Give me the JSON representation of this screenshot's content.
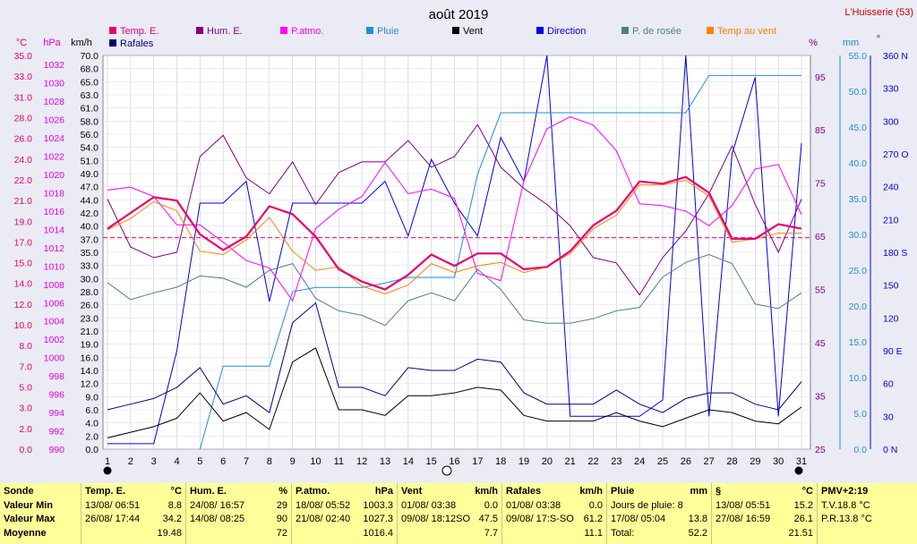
{
  "header": {
    "title": "août 2019",
    "station": "L'Huisserie (53)"
  },
  "legend": [
    {
      "label": "Temp. E.",
      "color": "#e6006e"
    },
    {
      "label": "Hum. E.",
      "color": "#800080"
    },
    {
      "label": "P.atmo.",
      "color": "#ff00ff"
    },
    {
      "label": "Pluie",
      "color": "#1e90d2"
    },
    {
      "label": "Vent",
      "color": "#000000"
    },
    {
      "label": "Direction",
      "color": "#0000e6"
    },
    {
      "label": "P. de rosée",
      "color": "#508080"
    },
    {
      "label": "Temp au vent",
      "color": "#ff8000"
    },
    {
      "label": "Rafales",
      "color": "#000080"
    }
  ],
  "axes": {
    "temp_unit": "°C",
    "pressure_unit": "hPa",
    "wind_unit": "km/h",
    "hum_unit": "%",
    "rain_unit": "mm",
    "dir_unit": "°",
    "temp_ticks": [
      "35.0",
      "33.0",
      "31.0",
      "28.0",
      "26.0",
      "24.0",
      "22.0",
      "21.0",
      "19.0",
      "17.0",
      "15.0",
      "14.0",
      "12.0",
      "10.0",
      "8.0",
      "7.0",
      "5.0",
      "3.0",
      "2.0",
      "0.0"
    ],
    "pressure_ticks": [
      "1032",
      "1030",
      "1028",
      "1026",
      "1024",
      "1022",
      "1020",
      "1018",
      "1016",
      "1014",
      "1012",
      "1010",
      "1008",
      "1006",
      "1004",
      "1002",
      "1000",
      "998",
      "996",
      "994",
      "992",
      "990"
    ],
    "wind_ticks": [
      "70.0",
      "68.0",
      "65.0",
      "63.0",
      "61.0",
      "58.0",
      "56.0",
      "54.0",
      "51.0",
      "49.0",
      "47.0",
      "44.0",
      "42.0",
      "40.0",
      "37.0",
      "35.0",
      "33.0",
      "30.0",
      "28.0",
      "26.0",
      "23.0",
      "21.0",
      "19.0",
      "16.0",
      "14.0",
      "12.0",
      "9.0",
      "6.0",
      "4.0",
      "2.0",
      "0.0"
    ],
    "hum_ticks": [
      "95",
      "85",
      "75",
      "65",
      "55",
      "45",
      "35",
      "25"
    ],
    "rain_ticks": [
      "55.0",
      "50.0",
      "45.0",
      "40.0",
      "35.0",
      "30.0",
      "25.0",
      "20.0",
      "15.0",
      "10.0",
      "5.0",
      "0.0"
    ],
    "dir_ticks": [
      "360 N",
      "330",
      "300",
      "270 O",
      "240",
      "210",
      "180 S",
      "150",
      "120",
      "90 E",
      "60",
      "30",
      "0 N"
    ],
    "days": [
      "1",
      "2",
      "3",
      "4",
      "5",
      "6",
      "7",
      "8",
      "9",
      "10",
      "11",
      "12",
      "13",
      "14",
      "15",
      "16",
      "17",
      "18",
      "19",
      "20",
      "21",
      "22",
      "23",
      "24",
      "25",
      "26",
      "27",
      "28",
      "29",
      "30",
      "31"
    ]
  },
  "chart_data": {
    "type": "line",
    "title": "août 2019",
    "x": [
      1,
      2,
      3,
      4,
      5,
      6,
      7,
      8,
      9,
      10,
      11,
      12,
      13,
      14,
      15,
      16,
      17,
      18,
      19,
      20,
      21,
      22,
      23,
      24,
      25,
      26,
      27,
      28,
      29,
      30,
      31
    ],
    "temp_range": [
      0,
      35
    ],
    "pressure_range": [
      990,
      1033
    ],
    "wind_range": [
      0,
      70
    ],
    "humidity_range": [
      25,
      99
    ],
    "rain_range": [
      0,
      55
    ],
    "direction_range": [
      0,
      360
    ],
    "reference_line_temp": 18.8,
    "series": [
      {
        "name": "Temp. E.",
        "axis": "temp",
        "color": "#e6006e",
        "values": [
          19.6,
          21.0,
          22.4,
          22.1,
          19.1,
          17.7,
          18.9,
          21.6,
          20.9,
          18.9,
          16.0,
          14.9,
          14.2,
          15.5,
          17.3,
          16.3,
          17.4,
          17.4,
          16.0,
          16.2,
          17.6,
          19.9,
          21.2,
          23.8,
          23.6,
          24.2,
          22.8,
          18.7,
          18.7,
          20.0,
          19.6
        ]
      },
      {
        "name": "Hum. E.",
        "axis": "humidity",
        "color": "#800080",
        "values": [
          72,
          63,
          61,
          62,
          80,
          84,
          76,
          73,
          79,
          71,
          77,
          79,
          79,
          83,
          78,
          80,
          86,
          78,
          74,
          71,
          67,
          61,
          60,
          54,
          61,
          66,
          73,
          82,
          71,
          62,
          72
        ]
      },
      {
        "name": "P.atmo.",
        "axis": "pressure",
        "color": "#ff00ff",
        "values": [
          1018.3,
          1018.6,
          1017.6,
          1014.5,
          1014.5,
          1012.6,
          1010.6,
          1009.8,
          1006.2,
          1014.1,
          1016.2,
          1017.6,
          1021.3,
          1017.9,
          1018.4,
          1017.4,
          1009.2,
          1008.4,
          1019.3,
          1025.0,
          1026.3,
          1025.4,
          1022.6,
          1016.8,
          1016.6,
          1016.0,
          1014.4,
          1016.6,
          1020.6,
          1021.1,
          1015.6
        ]
      },
      {
        "name": "Pluie",
        "axis": "rain",
        "color": "#1e90d2",
        "values": [
          null,
          null,
          null,
          null,
          0.0,
          11.6,
          11.6,
          11.6,
          22.0,
          22.6,
          22.6,
          22.6,
          23.2,
          24.0,
          24.0,
          24.0,
          38.4,
          47.0,
          47.0,
          47.0,
          47.0,
          47.0,
          47.0,
          47.0,
          47.0,
          47.0,
          52.2,
          52.2,
          52.2,
          52.2,
          52.2
        ]
      },
      {
        "name": "Vent",
        "axis": "wind",
        "color": "#000000",
        "values": [
          2.0,
          3.0,
          4.0,
          5.5,
          10.0,
          5.0,
          6.5,
          3.5,
          15.5,
          18.0,
          7.0,
          7.0,
          6.0,
          9.5,
          9.5,
          10.0,
          11.0,
          10.5,
          6.0,
          5.0,
          5.0,
          5.0,
          6.5,
          5.0,
          4.0,
          5.5,
          7.0,
          6.5,
          5.0,
          4.5,
          7.5
        ]
      },
      {
        "name": "Direction",
        "axis": "direction",
        "color": "#0000e6",
        "values": [
          5,
          5,
          5,
          90,
          225,
          225,
          245,
          135,
          225,
          225,
          225,
          225,
          245,
          195,
          265,
          225,
          195,
          285,
          245,
          360,
          30,
          30,
          30,
          30,
          45,
          360,
          30,
          270,
          340,
          30,
          280
        ]
      },
      {
        "name": "P. de rosée",
        "axis": "temp",
        "color": "#508080",
        "values": [
          14.8,
          13.3,
          13.9,
          14.4,
          15.4,
          15.2,
          14.4,
          15.9,
          16.5,
          13.4,
          12.3,
          11.9,
          11.0,
          13.2,
          13.9,
          13.2,
          16.0,
          14.2,
          11.5,
          11.2,
          11.2,
          11.6,
          12.3,
          12.6,
          15.3,
          16.6,
          17.3,
          16.5,
          12.9,
          12.5,
          13.9
        ]
      },
      {
        "name": "Temp au vent",
        "axis": "temp",
        "color": "#ff8000",
        "values": [
          19.5,
          20.5,
          22.0,
          21.2,
          17.6,
          17.3,
          18.6,
          20.6,
          17.6,
          15.9,
          16.2,
          14.5,
          13.8,
          14.6,
          16.5,
          15.7,
          16.3,
          16.6,
          15.7,
          16.2,
          17.4,
          19.6,
          20.8,
          23.5,
          23.5,
          23.9,
          22.5,
          18.4,
          18.7,
          19.2,
          19.2
        ]
      },
      {
        "name": "Rafales",
        "axis": "wind",
        "color": "#000080",
        "values": [
          7.0,
          8.0,
          9.0,
          11.0,
          14.5,
          8.0,
          9.5,
          6.5,
          22.5,
          26.0,
          11.0,
          11.0,
          9.5,
          14.5,
          14.0,
          14.0,
          16.0,
          15.5,
          10.0,
          8.0,
          8.0,
          8.0,
          10.5,
          8.0,
          6.5,
          9.0,
          10.0,
          10.0,
          8.0,
          7.0,
          12.0
        ]
      }
    ]
  },
  "table": {
    "row_labels": [
      "Sonde",
      "Valeur Min",
      "Valeur Max",
      "Moyenne"
    ],
    "temp": {
      "title": "Temp. E.",
      "unit": "°C",
      "min_date": "13/08/ 06:51",
      "min": "8.8",
      "max_date": "26/08/ 17:44",
      "max": "34.2",
      "avg": "19.48"
    },
    "hum": {
      "title": "Hum. E.",
      "unit": "%",
      "min_date": "24/08/ 16:57",
      "min": "29",
      "max_date": "14/08/ 08:25",
      "max": "90",
      "avg": "72"
    },
    "press": {
      "title": "P.atmo.",
      "unit": "hPa",
      "min_date": "18/08/ 05:52",
      "min": "1003.3",
      "max_date": "21/08/ 02:40",
      "max": "1027.3",
      "avg": "1016.4"
    },
    "wind": {
      "title": "Vent",
      "unit": "km/h",
      "min_date": "01/08/ 03:38",
      "min": "0.0",
      "max_date": "09/08/ 18:12SO",
      "max": "47.5",
      "avg": "7.7"
    },
    "gust": {
      "title": "Rafales",
      "unit": "km/h",
      "min_date": "01/08/ 03:38",
      "min": "0.0",
      "max_date": "09/08/ 17:S-SO",
      "max": "61.2",
      "avg": "11.1"
    },
    "rain": {
      "title": "Pluie",
      "unit": "mm",
      "line1": "Jours de pluie: 8",
      "line2_date": "17/08/ 05:04",
      "line2_val": "13.8",
      "line3_label": "Total:",
      "line3_val": "52.2"
    },
    "dew": {
      "title": "§",
      "unit": "°C",
      "min_date": "13/08/ 05:51",
      "min": "15.2",
      "max_date": "27/08/ 16:59",
      "max": "26.1",
      "avg": "21.51"
    },
    "pmv": {
      "title": "PMV+2:19",
      "line1": "T.V.18.8 °C",
      "line2": "P.R.13.8 °C"
    }
  }
}
